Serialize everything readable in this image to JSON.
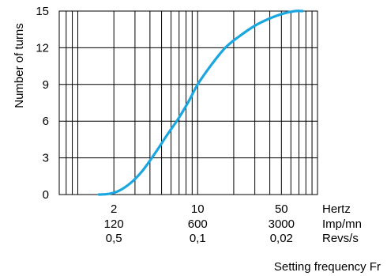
{
  "chart_data": {
    "type": "line",
    "title": "",
    "xscale": "log",
    "xlim": [
      0.7,
      100
    ],
    "ylim": [
      0,
      15
    ],
    "ylabel": "Number of turns",
    "xlabel": "Setting frequency Fr",
    "yticks": [
      0,
      3,
      6,
      9,
      12,
      15
    ],
    "xticks": [
      {
        "value": 2,
        "labels": [
          "2",
          "120",
          "0,5"
        ]
      },
      {
        "value": 10,
        "labels": [
          "10",
          "600",
          "0,1"
        ]
      },
      {
        "value": 50,
        "labels": [
          "50",
          "3000",
          "0,02"
        ]
      }
    ],
    "unit_labels": [
      "Hertz",
      "Imp/mn",
      "Revs/s"
    ],
    "grid": true,
    "line_color": "#1aa7e0",
    "series": [
      {
        "x": [
          1.5,
          1.8,
          2.2,
          2.8,
          3.5,
          4.5,
          5.5,
          7,
          8.5,
          10,
          13,
          17,
          22,
          30,
          40,
          52,
          65,
          75
        ],
        "y": [
          0,
          0.05,
          0.3,
          1.0,
          2.0,
          3.5,
          4.8,
          6.3,
          7.7,
          9.0,
          10.6,
          12.0,
          12.9,
          13.8,
          14.4,
          14.8,
          15.0,
          15.0
        ]
      }
    ]
  }
}
